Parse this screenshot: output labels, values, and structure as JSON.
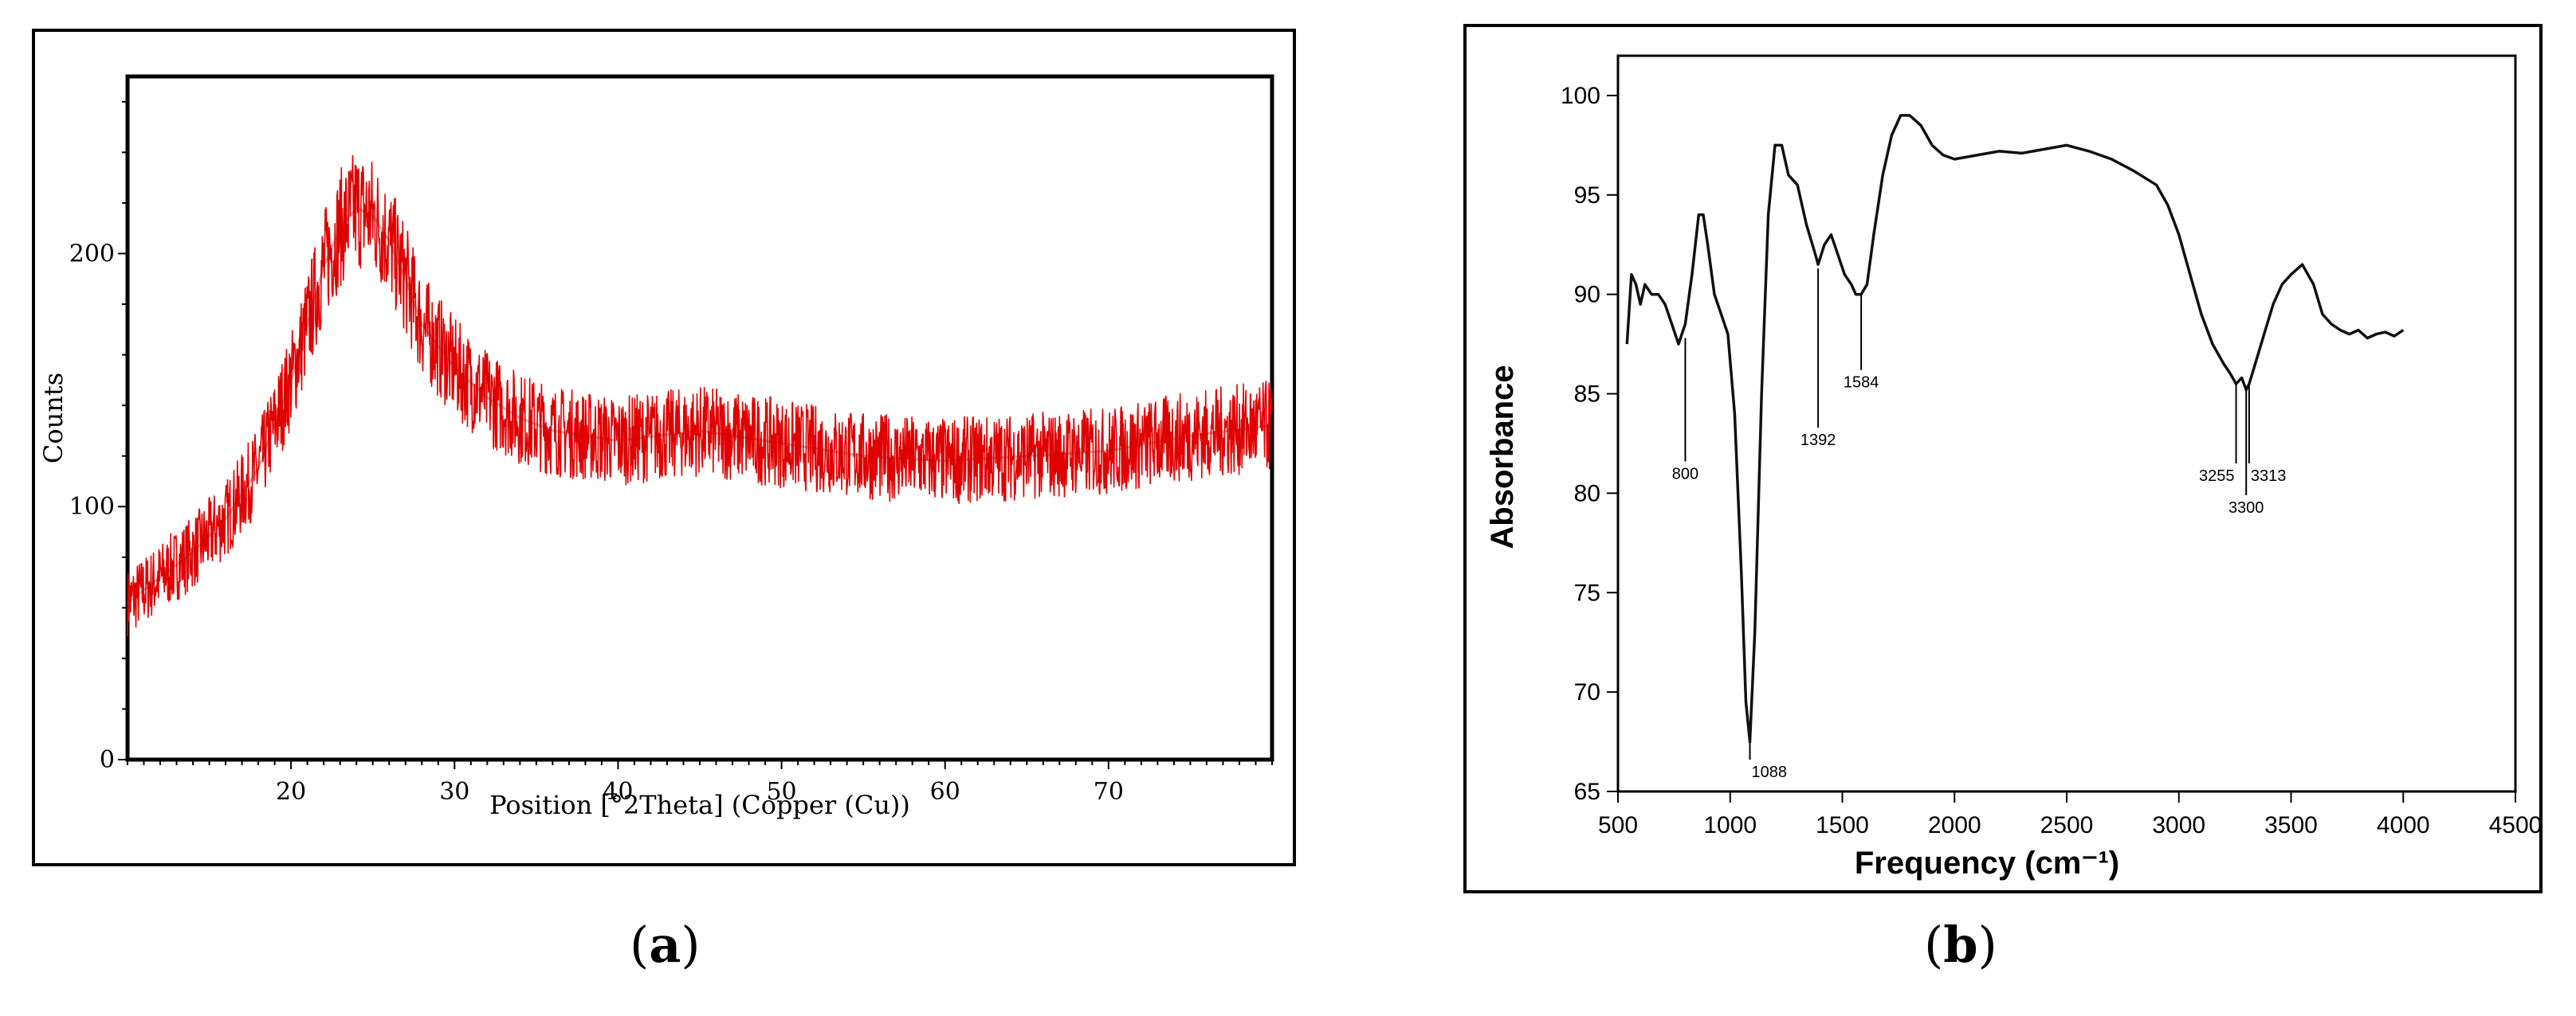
{
  "panels": [
    {
      "caption_open": "(",
      "caption_letter": "a",
      "caption_close": ")"
    },
    {
      "caption_open": "(",
      "caption_letter": "b",
      "caption_close": ")"
    }
  ],
  "chart_data": [
    {
      "type": "line",
      "title": "",
      "xlabel": "Position [°2Theta] (Copper (Cu))",
      "ylabel": "Counts",
      "xlim": [
        10,
        80
      ],
      "ylim": [
        0,
        270
      ],
      "xticks": [
        20,
        30,
        40,
        50,
        60,
        70
      ],
      "yticks": [
        0,
        100,
        200
      ],
      "grid": false,
      "line_color": "#e00000",
      "noise_amplitude": 18,
      "series": [
        {
          "x": [
            10,
            12,
            14,
            16,
            18,
            20,
            21,
            22,
            23,
            24,
            25,
            26,
            27,
            28,
            30,
            32,
            34,
            36,
            40,
            45,
            50,
            55,
            60,
            65,
            70,
            75,
            80
          ],
          "y": [
            62,
            72,
            82,
            95,
            115,
            150,
            172,
            195,
            210,
            218,
            215,
            205,
            190,
            172,
            155,
            143,
            135,
            130,
            126,
            130,
            125,
            120,
            118,
            120,
            122,
            128,
            132
          ]
        }
      ]
    },
    {
      "type": "line",
      "title": "",
      "xlabel": "Frequency (cm⁻¹)",
      "ylabel": "Absorbance",
      "xlim": [
        500,
        4500
      ],
      "ylim": [
        65,
        102
      ],
      "xticks": [
        500,
        1000,
        1500,
        2000,
        2500,
        3000,
        3500,
        4000,
        4500
      ],
      "yticks": [
        65,
        70,
        75,
        80,
        85,
        90,
        95,
        100
      ],
      "grid": false,
      "line_color": "#111111",
      "series": [
        {
          "x": [
            540,
            560,
            580,
            600,
            620,
            650,
            680,
            710,
            740,
            770,
            800,
            830,
            860,
            880,
            900,
            930,
            960,
            990,
            1020,
            1050,
            1070,
            1088,
            1110,
            1140,
            1170,
            1200,
            1230,
            1260,
            1300,
            1340,
            1380,
            1392,
            1420,
            1450,
            1480,
            1510,
            1540,
            1560,
            1584,
            1610,
            1640,
            1680,
            1720,
            1760,
            1800,
            1850,
            1900,
            1950,
            2000,
            2100,
            2200,
            2300,
            2400,
            2500,
            2600,
            2700,
            2800,
            2900,
            2950,
            3000,
            3050,
            3100,
            3150,
            3200,
            3230,
            3255,
            3280,
            3300,
            3313,
            3340,
            3380,
            3420,
            3460,
            3500,
            3550,
            3600,
            3640,
            3680,
            3720,
            3760,
            3800,
            3840,
            3880,
            3920,
            3960,
            4000
          ],
          "y": [
            87.5,
            91,
            90.5,
            89.5,
            90.5,
            90,
            90,
            89.5,
            88.5,
            87.5,
            88.5,
            91,
            94,
            94,
            92.5,
            90,
            89,
            88,
            84,
            76,
            69.5,
            67.5,
            73,
            85,
            94,
            97.5,
            97.5,
            96,
            95.5,
            93.5,
            92,
            91.5,
            92.5,
            93,
            92,
            91,
            90.5,
            90,
            90,
            90.5,
            93,
            96,
            98,
            99,
            99,
            98.5,
            97.5,
            97,
            96.8,
            97,
            97.2,
            97.1,
            97.3,
            97.5,
            97.2,
            96.8,
            96.2,
            95.5,
            94.5,
            93,
            91,
            89,
            87.5,
            86.5,
            86,
            85.5,
            85.8,
            85.2,
            85.5,
            86.5,
            88,
            89.5,
            90.5,
            91,
            91.5,
            90.5,
            89,
            88.5,
            88.2,
            88,
            88.2,
            87.8,
            88,
            88.1,
            87.9,
            88.2
          ]
        }
      ],
      "annotations": [
        {
          "label": "800",
          "x": 800,
          "y_top": 87.8,
          "y_bottom": 81.6
        },
        {
          "label": "1088",
          "x": 1088,
          "y_top": 67.5,
          "y_bottom": 66.6
        },
        {
          "label": "1392",
          "x": 1392,
          "y_top": 91.3,
          "y_bottom": 83.3
        },
        {
          "label": "1584",
          "x": 1584,
          "y_top": 90.0,
          "y_bottom": 86.2
        },
        {
          "label": "3255",
          "x": 3255,
          "y_top": 85.5,
          "y_bottom": 81.5
        },
        {
          "label": "3313",
          "x": 3313,
          "y_top": 85.5,
          "y_bottom": 81.5
        },
        {
          "label": "3300",
          "x": 3300,
          "y_top": 85.3,
          "y_bottom": 79.9
        }
      ]
    }
  ]
}
